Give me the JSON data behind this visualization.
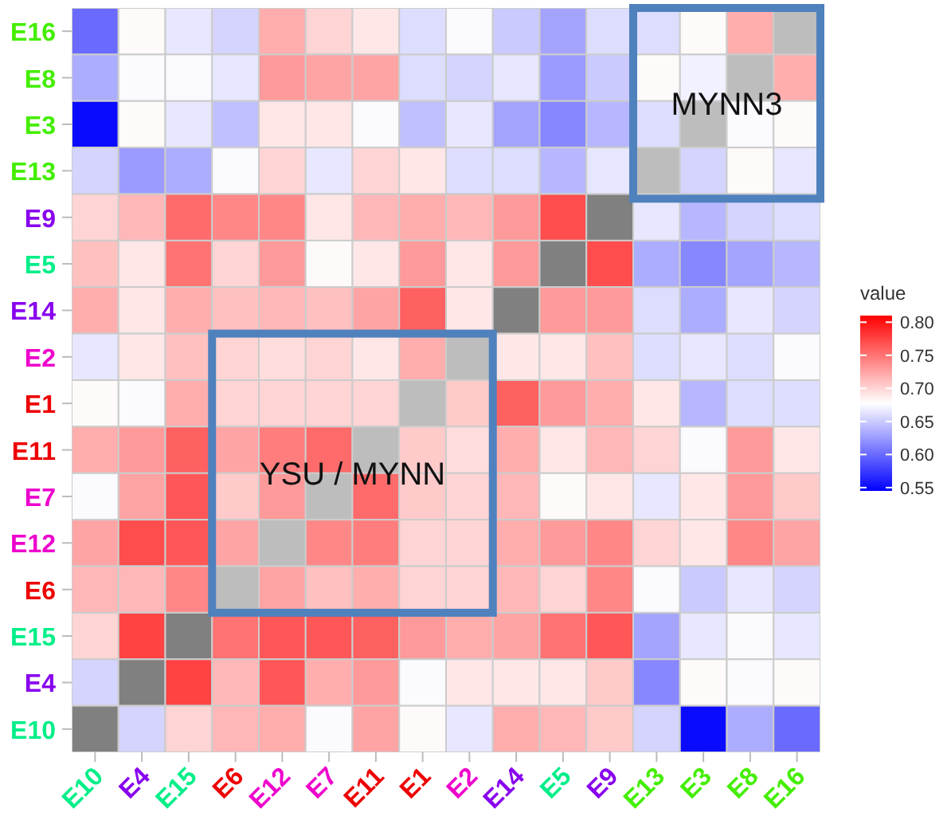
{
  "chart_data": {
    "type": "heatmap",
    "clabel": "value",
    "categories": [
      "E10",
      "E4",
      "E15",
      "E6",
      "E12",
      "E7",
      "E11",
      "E1",
      "E2",
      "E14",
      "E5",
      "E9",
      "E13",
      "E3",
      "E8",
      "E16"
    ],
    "y_categories": [
      "E16",
      "E8",
      "E3",
      "E13",
      "E9",
      "E5",
      "E14",
      "E2",
      "E1",
      "E11",
      "E7",
      "E12",
      "E6",
      "E15",
      "E4",
      "E10"
    ],
    "cells": [
      [
        0.6,
        0.68,
        0.665,
        0.655,
        0.72,
        0.7,
        0.69,
        0.66,
        0.675,
        0.65,
        0.63,
        0.66,
        0.66,
        0.68,
        0.72,
        null
      ],
      [
        0.635,
        0.675,
        0.675,
        0.665,
        0.73,
        0.725,
        0.725,
        0.66,
        0.655,
        0.665,
        0.625,
        0.65,
        0.68,
        0.67,
        null,
        0.72
      ],
      [
        0.55,
        0.68,
        0.665,
        0.645,
        0.69,
        0.69,
        0.675,
        0.645,
        0.665,
        0.63,
        0.615,
        0.64,
        0.66,
        null,
        0.675,
        0.68
      ],
      [
        0.655,
        0.625,
        0.635,
        0.675,
        0.7,
        0.665,
        0.7,
        0.69,
        0.66,
        0.66,
        0.64,
        0.665,
        null,
        0.655,
        0.68,
        0.665
      ],
      [
        0.7,
        0.715,
        0.755,
        0.74,
        0.74,
        0.69,
        0.715,
        0.72,
        0.715,
        0.73,
        0.77,
        null,
        0.665,
        0.64,
        0.655,
        0.66
      ],
      [
        0.71,
        0.69,
        0.75,
        0.7,
        0.73,
        0.68,
        0.69,
        0.73,
        0.69,
        0.73,
        null,
        0.77,
        0.635,
        0.615,
        0.63,
        0.64
      ],
      [
        0.72,
        0.69,
        0.72,
        0.71,
        0.715,
        0.71,
        0.725,
        0.76,
        0.69,
        null,
        0.73,
        0.73,
        0.66,
        0.635,
        0.665,
        0.655
      ],
      [
        0.665,
        0.69,
        0.71,
        0.7,
        0.695,
        0.7,
        0.69,
        0.72,
        null,
        0.69,
        0.69,
        0.71,
        0.66,
        0.665,
        0.66,
        0.675
      ],
      [
        0.68,
        0.675,
        0.72,
        0.7,
        0.7,
        0.7,
        0.7,
        null,
        0.705,
        0.76,
        0.73,
        0.72,
        0.69,
        0.64,
        0.66,
        0.66
      ],
      [
        0.72,
        0.73,
        0.76,
        0.725,
        0.745,
        0.755,
        null,
        0.705,
        0.695,
        0.72,
        0.69,
        0.715,
        0.7,
        0.675,
        0.73,
        0.69
      ],
      [
        0.675,
        0.725,
        0.765,
        0.705,
        0.73,
        null,
        0.755,
        0.705,
        0.7,
        0.715,
        0.68,
        0.69,
        0.665,
        0.69,
        0.73,
        0.705
      ],
      [
        0.725,
        0.77,
        0.765,
        0.725,
        null,
        0.74,
        0.745,
        0.7,
        0.7,
        0.72,
        0.73,
        0.74,
        0.7,
        0.69,
        0.74,
        0.725
      ],
      [
        0.715,
        0.715,
        0.74,
        null,
        0.725,
        0.71,
        0.72,
        0.7,
        0.7,
        0.715,
        0.7,
        0.74,
        0.675,
        0.65,
        0.665,
        0.655
      ],
      [
        0.7,
        0.775,
        null,
        0.75,
        0.765,
        0.765,
        0.76,
        0.73,
        0.72,
        0.725,
        0.75,
        0.765,
        0.63,
        0.665,
        0.675,
        0.665
      ],
      [
        0.655,
        null,
        0.775,
        0.715,
        0.765,
        0.72,
        0.73,
        0.675,
        0.69,
        0.69,
        0.69,
        0.705,
        0.615,
        0.68,
        0.675,
        0.68
      ],
      [
        null,
        0.655,
        0.7,
        0.715,
        0.72,
        0.675,
        0.725,
        0.68,
        0.665,
        0.72,
        0.715,
        0.705,
        0.655,
        0.55,
        0.635,
        0.6
      ]
    ],
    "clim": [
      0.545,
      0.81
    ],
    "cticks": [
      0.55,
      {
        "value": 0.6,
        "label": "0.60"
      },
      0.65,
      {
        "value": 0.7,
        "label": "0.70"
      },
      0.75,
      {
        "value": 0.8,
        "label": "0.80"
      }
    ],
    "annotations": [
      "YSU / MYNN",
      "MYNN3"
    ]
  }
}
